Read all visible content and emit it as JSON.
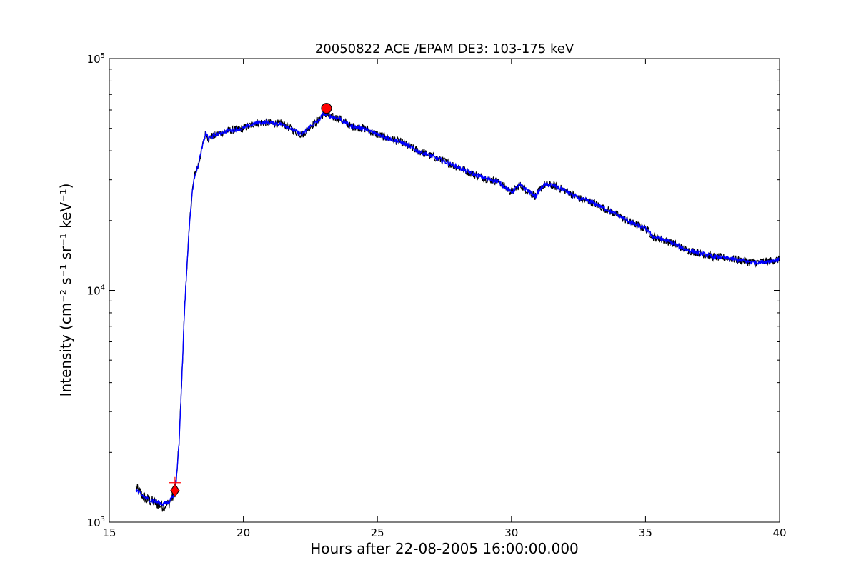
{
  "chart_data": {
    "type": "line",
    "title": "20050822 ACE /EPAM DE3: 103-175 keV",
    "xlabel": "Hours after 22-08-2005 16:00:00.000",
    "ylabel": "Intensity (cm⁻² s⁻¹ sr⁻¹ keV⁻¹)",
    "xlim": [
      15,
      40
    ],
    "ylim": [
      1000,
      100000
    ],
    "yscale": "log",
    "grid": false,
    "x_ticks": [
      15,
      20,
      25,
      30,
      35,
      40
    ],
    "x_tick_labels": [
      "15",
      "20",
      "25",
      "30",
      "35",
      "40"
    ],
    "y_ticks": [
      1000,
      10000,
      100000
    ],
    "y_tick_labels": [
      {
        "base": "10",
        "exp": "3"
      },
      {
        "base": "10",
        "exp": "4"
      },
      {
        "base": "10",
        "exp": "5"
      }
    ],
    "series": [
      {
        "color": "#000000",
        "x": [
          16.0,
          16.2,
          16.4,
          16.6,
          16.8,
          17.0,
          17.2,
          17.4,
          17.5,
          17.6,
          17.7,
          17.8,
          17.9,
          18.0,
          18.1,
          18.2,
          18.3,
          18.5,
          18.6,
          18.7,
          18.8,
          19.0,
          19.2,
          19.5,
          20.0,
          20.5,
          21.0,
          21.5,
          22.0,
          22.2,
          22.5,
          22.8,
          23.0,
          23.3,
          23.6,
          24.0,
          24.5,
          25.0,
          25.5,
          26.0,
          26.5,
          27.0,
          27.5,
          28.0,
          28.5,
          29.0,
          29.5,
          30.0,
          30.3,
          30.6,
          30.9,
          31.2,
          31.5,
          32.0,
          32.5,
          33.0,
          33.5,
          34.0,
          34.5,
          35.0,
          35.3,
          35.7,
          36.0,
          36.5,
          37.0,
          37.5,
          38.0,
          38.5,
          39.0,
          39.5,
          40.0
        ],
        "y": [
          1400,
          1320,
          1250,
          1230,
          1200,
          1170,
          1200,
          1300,
          1500,
          2200,
          4000,
          8000,
          13000,
          20000,
          27000,
          32000,
          34000,
          43000,
          48000,
          45000,
          46000,
          47000,
          48000,
          49000,
          50000,
          53000,
          53000,
          52000,
          48000,
          47000,
          51000,
          54000,
          58000,
          56000,
          55000,
          51000,
          50000,
          47000,
          45000,
          43000,
          40000,
          38000,
          36000,
          34000,
          32000,
          30500,
          29500,
          26500,
          28500,
          27000,
          25500,
          28500,
          28500,
          27000,
          25000,
          24000,
          22500,
          21000,
          19500,
          18500,
          17000,
          16500,
          16000,
          15000,
          14500,
          14000,
          13800,
          13500,
          13200,
          13300,
          13600
        ]
      },
      {
        "color": "#0000ff",
        "x": [
          16.0,
          16.2,
          16.4,
          16.6,
          16.8,
          17.0,
          17.2,
          17.4,
          17.5,
          17.6,
          17.7,
          17.8,
          17.9,
          18.0,
          18.1,
          18.2,
          18.3,
          18.5,
          18.6,
          18.7,
          18.8,
          19.0,
          19.2,
          19.5,
          20.0,
          20.5,
          21.0,
          21.5,
          22.0,
          22.2,
          22.5,
          22.8,
          23.0,
          23.3,
          23.6,
          24.0,
          24.5,
          25.0,
          25.5,
          26.0,
          26.5,
          27.0,
          27.5,
          28.0,
          28.5,
          29.0,
          29.5,
          30.0,
          30.3,
          30.6,
          30.9,
          31.2,
          31.5,
          32.0,
          32.5,
          33.0,
          33.5,
          34.0,
          34.5,
          35.0,
          35.3,
          35.7,
          36.0,
          36.5,
          37.0,
          37.5,
          38.0,
          38.5,
          39.0,
          39.5,
          40.0
        ],
        "y": [
          1380,
          1310,
          1260,
          1240,
          1220,
          1200,
          1210,
          1320,
          1520,
          2200,
          4000,
          8000,
          13000,
          20000,
          27000,
          32000,
          34000,
          43000,
          48000,
          45000,
          46000,
          47000,
          48000,
          49000,
          50000,
          53000,
          53000,
          52000,
          48000,
          47000,
          51000,
          54000,
          58000,
          56000,
          55000,
          51000,
          50000,
          47000,
          45000,
          43000,
          40000,
          38000,
          36000,
          34000,
          32000,
          30500,
          29500,
          26500,
          28500,
          27000,
          25500,
          28500,
          28500,
          27000,
          25000,
          24000,
          22500,
          21000,
          19500,
          18500,
          17000,
          16500,
          16000,
          15000,
          14500,
          14000,
          13800,
          13500,
          13200,
          13300,
          13600
        ]
      }
    ],
    "markers": [
      {
        "shape": "circle",
        "color": "#ff0000",
        "x": 23.1,
        "y": 61000
      },
      {
        "shape": "diamond",
        "color": "#ff0000",
        "x": 17.45,
        "y": 1370
      },
      {
        "shape": "plus",
        "color": "#ff0000",
        "x": 17.45,
        "y": 1480
      }
    ]
  }
}
